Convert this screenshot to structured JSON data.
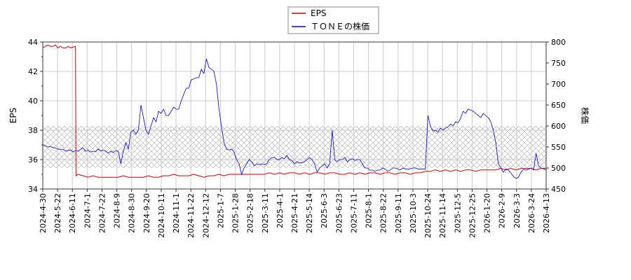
{
  "chart_data": {
    "type": "line",
    "legend": {
      "placement": "top-center",
      "entries": [
        {
          "name": "EPS",
          "color": "#cc0000"
        },
        {
          "name": "ＴＯＮＥの株価",
          "color": "#0000cc"
        }
      ]
    },
    "y_left": {
      "label": "EPS",
      "range": [
        34,
        44
      ],
      "ticks": [
        "34",
        "36",
        "38",
        "40",
        "42",
        "44"
      ]
    },
    "y_right": {
      "label": "株価",
      "range": [
        450,
        800
      ],
      "ticks": [
        "450",
        "500",
        "550",
        "600",
        "650",
        "700",
        "750",
        "800"
      ]
    },
    "x_ticks": [
      "2024-4-30",
      "2024-5-22",
      "2024-6-11",
      "2024-7-1",
      "2024-7-22",
      "2024-8-9",
      "2024-8-30",
      "2024-9-20",
      "2024-10-11",
      "2024-11-1",
      "2024-11-22",
      "2024-12-12",
      "2025-1-7",
      "2025-1-28",
      "2025-2-18",
      "2025-3-11",
      "2025-4-1",
      "2025-4-21",
      "2025-5-14",
      "2025-6-3",
      "2025-6-23",
      "2025-7-11",
      "2025-8-1",
      "2025-8-22",
      "2025-9-11",
      "2025-10-3",
      "2025-10-24",
      "2025-11-14",
      "2025-12-5",
      "2025-12-25",
      "2026-1-20",
      "2026-2-9",
      "2026-3-3",
      "2026-3-24",
      "2026-4-13"
    ],
    "hatch_band": {
      "axis": "right",
      "from": 500,
      "to": 600
    },
    "grid": true,
    "series": [
      {
        "name": "EPS",
        "axis": "left",
        "color": "#cc0000",
        "points": [
          [
            0,
            43.6
          ],
          [
            0.5,
            43.7
          ],
          [
            1,
            43.8
          ],
          [
            1.5,
            43.7
          ],
          [
            2,
            43.7
          ],
          [
            2.5,
            43.8
          ],
          [
            3,
            43.6
          ],
          [
            3.5,
            43.7
          ],
          [
            4,
            43.6
          ],
          [
            4.7,
            43.6
          ],
          [
            5,
            43.7
          ],
          [
            5.5,
            43.6
          ],
          [
            6.5,
            43.7
          ],
          [
            6.6,
            34.9
          ],
          [
            7,
            35.0
          ],
          [
            8,
            34.9
          ],
          [
            9,
            34.8
          ],
          [
            10,
            34.9
          ],
          [
            11,
            34.8
          ],
          [
            12,
            34.8
          ],
          [
            13,
            34.8
          ],
          [
            14,
            34.8
          ],
          [
            15,
            34.8
          ],
          [
            16,
            34.9
          ],
          [
            17,
            34.8
          ],
          [
            18,
            34.8
          ],
          [
            19,
            34.8
          ],
          [
            20,
            34.8
          ],
          [
            21,
            34.9
          ],
          [
            22,
            34.8
          ],
          [
            23,
            34.8
          ],
          [
            24,
            34.9
          ],
          [
            25,
            34.9
          ],
          [
            26,
            35.0
          ],
          [
            27,
            34.9
          ],
          [
            28,
            34.9
          ],
          [
            29,
            34.9
          ],
          [
            30,
            35.0
          ],
          [
            31,
            34.9
          ],
          [
            32,
            34.8
          ],
          [
            33,
            34.9
          ],
          [
            34,
            34.9
          ],
          [
            35,
            35.0
          ],
          [
            36,
            34.9
          ],
          [
            37,
            35.0
          ],
          [
            38,
            35.0
          ],
          [
            39,
            35.0
          ],
          [
            40,
            35.0
          ],
          [
            41,
            35.0
          ],
          [
            42,
            35.0
          ],
          [
            43,
            35.0
          ],
          [
            44,
            35.0
          ],
          [
            45,
            35.1
          ],
          [
            46,
            35.0
          ],
          [
            47,
            35.1
          ],
          [
            48,
            35.0
          ],
          [
            49,
            35.1
          ],
          [
            50,
            35.1
          ],
          [
            51,
            35.0
          ],
          [
            52,
            35.1
          ],
          [
            53,
            35.0
          ],
          [
            54,
            35.1
          ],
          [
            55,
            35.1
          ],
          [
            56,
            35.0
          ],
          [
            57,
            35.1
          ],
          [
            58,
            35.1
          ],
          [
            59,
            35.0
          ],
          [
            60,
            35.0
          ],
          [
            61,
            35.1
          ],
          [
            62,
            35.0
          ],
          [
            63,
            35.1
          ],
          [
            64,
            35.0
          ],
          [
            65,
            35.1
          ],
          [
            66,
            35.1
          ],
          [
            67,
            35.0
          ],
          [
            68,
            35.1
          ],
          [
            69,
            35.1
          ],
          [
            70,
            35.0
          ],
          [
            71,
            35.1
          ],
          [
            72,
            35.1
          ],
          [
            73,
            35.0
          ],
          [
            74,
            35.1
          ],
          [
            75,
            35.1
          ],
          [
            76,
            35.2
          ],
          [
            77,
            35.2
          ],
          [
            78,
            35.3
          ],
          [
            79,
            35.2
          ],
          [
            80,
            35.3
          ],
          [
            81,
            35.2
          ],
          [
            82,
            35.3
          ],
          [
            83,
            35.2
          ],
          [
            84,
            35.3
          ],
          [
            85,
            35.3
          ],
          [
            86,
            35.2
          ],
          [
            87,
            35.3
          ],
          [
            88,
            35.3
          ],
          [
            89,
            35.3
          ],
          [
            90,
            35.3
          ],
          [
            91,
            35.4
          ],
          [
            92,
            35.3
          ],
          [
            93,
            35.4
          ],
          [
            94,
            35.3
          ],
          [
            95,
            35.4
          ],
          [
            96,
            35.4
          ],
          [
            97,
            35.4
          ],
          [
            98,
            35.3
          ],
          [
            99,
            35.4
          ],
          [
            100,
            35.4
          ]
        ]
      },
      {
        "name": "ＴＯＮＥの株価",
        "axis": "right",
        "color": "#0000cc",
        "points": [
          [
            0,
            555
          ],
          [
            0.5,
            553
          ],
          [
            1,
            550
          ],
          [
            1.5,
            551
          ],
          [
            2,
            549
          ],
          [
            2.5,
            548
          ],
          [
            3,
            545
          ],
          [
            3.5,
            544
          ],
          [
            4,
            545
          ],
          [
            4.5,
            540
          ],
          [
            5,
            542
          ],
          [
            5.5,
            543
          ],
          [
            6,
            538
          ],
          [
            6.5,
            541
          ],
          [
            7,
            540
          ],
          [
            7.5,
            544
          ],
          [
            8,
            548
          ],
          [
            8.5,
            540
          ],
          [
            9,
            542
          ],
          [
            9.5,
            538
          ],
          [
            10,
            540
          ],
          [
            10.5,
            539
          ],
          [
            11,
            545
          ],
          [
            11.5,
            541
          ],
          [
            12,
            542
          ],
          [
            12.5,
            540
          ],
          [
            13,
            535
          ],
          [
            13.5,
            540
          ],
          [
            14,
            537
          ],
          [
            14.5,
            541
          ],
          [
            15,
            540
          ],
          [
            15.5,
            510
          ],
          [
            16,
            540
          ],
          [
            16.5,
            560
          ],
          [
            17,
            545
          ],
          [
            17.5,
            585
          ],
          [
            18,
            590
          ],
          [
            18.5,
            580
          ],
          [
            19,
            590
          ],
          [
            19.5,
            650
          ],
          [
            20,
            620
          ],
          [
            20.5,
            590
          ],
          [
            21,
            580
          ],
          [
            21.5,
            600
          ],
          [
            22,
            620
          ],
          [
            22.5,
            610
          ],
          [
            23,
            635
          ],
          [
            23.5,
            630
          ],
          [
            24,
            640
          ],
          [
            24.5,
            625
          ],
          [
            25,
            625
          ],
          [
            25.5,
            635
          ],
          [
            26,
            645
          ],
          [
            26.5,
            640
          ],
          [
            27,
            640
          ],
          [
            27.5,
            660
          ],
          [
            28,
            675
          ],
          [
            28.5,
            690
          ],
          [
            29,
            690
          ],
          [
            29.5,
            710
          ],
          [
            30,
            712
          ],
          [
            30.5,
            715
          ],
          [
            31,
            715
          ],
          [
            31.5,
            735
          ],
          [
            32,
            725
          ],
          [
            32.5,
            760
          ],
          [
            33,
            740
          ],
          [
            33.5,
            735
          ],
          [
            34,
            730
          ],
          [
            34.5,
            700
          ],
          [
            35,
            640
          ],
          [
            35.5,
            600
          ],
          [
            36,
            560
          ],
          [
            36.5,
            545
          ],
          [
            37,
            543
          ],
          [
            37.5,
            545
          ],
          [
            38,
            538
          ],
          [
            38.5,
            520
          ],
          [
            39,
            510
          ],
          [
            39.5,
            485
          ],
          [
            40,
            500
          ],
          [
            40.5,
            510
          ],
          [
            41,
            520
          ],
          [
            41.5,
            515
          ],
          [
            42,
            505
          ],
          [
            42.5,
            510
          ],
          [
            43,
            508
          ],
          [
            43.5,
            510
          ],
          [
            44,
            508
          ],
          [
            44.5,
            510
          ],
          [
            45,
            520
          ],
          [
            45.5,
            525
          ],
          [
            46,
            525
          ],
          [
            46.5,
            520
          ],
          [
            47,
            520
          ],
          [
            47.5,
            525
          ],
          [
            48,
            522
          ],
          [
            48.5,
            530
          ],
          [
            49,
            520
          ],
          [
            49.5,
            518
          ],
          [
            50,
            510
          ],
          [
            50.5,
            515
          ],
          [
            51,
            512
          ],
          [
            51.5,
            513
          ],
          [
            52,
            515
          ],
          [
            52.5,
            520
          ],
          [
            53,
            525
          ],
          [
            53.5,
            520
          ],
          [
            54,
            510
          ],
          [
            54.5,
            490
          ],
          [
            55,
            500
          ],
          [
            55.5,
            505
          ],
          [
            56,
            510
          ],
          [
            56.5,
            500
          ],
          [
            57,
            510
          ],
          [
            57.5,
            590
          ],
          [
            58,
            520
          ],
          [
            58.5,
            515
          ],
          [
            59,
            520
          ],
          [
            59.5,
            520
          ],
          [
            60,
            525
          ],
          [
            60.5,
            515
          ],
          [
            61,
            520
          ],
          [
            61.5,
            522
          ],
          [
            62,
            518
          ],
          [
            62.5,
            520
          ],
          [
            63,
            520
          ],
          [
            63.5,
            510
          ],
          [
            64,
            500
          ],
          [
            64.5,
            500
          ],
          [
            65,
            495
          ],
          [
            65.5,
            495
          ],
          [
            66,
            492
          ],
          [
            66.5,
            495
          ],
          [
            67,
            495
          ],
          [
            67.5,
            500
          ],
          [
            68,
            498
          ],
          [
            68.5,
            492
          ],
          [
            69,
            495
          ],
          [
            69.5,
            500
          ],
          [
            70,
            500
          ],
          [
            70.5,
            498
          ],
          [
            71,
            495
          ],
          [
            71.5,
            500
          ],
          [
            72,
            498
          ],
          [
            72.5,
            497
          ],
          [
            73,
            498
          ],
          [
            73.5,
            500
          ],
          [
            74,
            500
          ],
          [
            74.5,
            498
          ],
          [
            75,
            497
          ],
          [
            75.5,
            498
          ],
          [
            76,
            497
          ],
          [
            76.5,
            625
          ],
          [
            77,
            600
          ],
          [
            77.5,
            588
          ],
          [
            78,
            590
          ],
          [
            78.5,
            585
          ],
          [
            79,
            595
          ],
          [
            79.5,
            590
          ],
          [
            80,
            595
          ],
          [
            80.5,
            598
          ],
          [
            81,
            605
          ],
          [
            81.5,
            600
          ],
          [
            82,
            610
          ],
          [
            82.5,
            608
          ],
          [
            83,
            618
          ],
          [
            83.5,
            635
          ],
          [
            84,
            630
          ],
          [
            84.5,
            640
          ],
          [
            85,
            638
          ],
          [
            85.5,
            635
          ],
          [
            86,
            630
          ],
          [
            86.5,
            625
          ],
          [
            87,
            620
          ],
          [
            87.5,
            630
          ],
          [
            88,
            625
          ],
          [
            88.5,
            620
          ],
          [
            89,
            610
          ],
          [
            89.5,
            590
          ],
          [
            90,
            560
          ],
          [
            90.5,
            510
          ],
          [
            91,
            500
          ],
          [
            91.5,
            490
          ],
          [
            92,
            498
          ],
          [
            92.5,
            495
          ],
          [
            93,
            488
          ],
          [
            93.5,
            480
          ],
          [
            94,
            475
          ],
          [
            94.5,
            478
          ],
          [
            95,
            490
          ],
          [
            95.5,
            497
          ],
          [
            96,
            495
          ],
          [
            96.5,
            497
          ],
          [
            97,
            500
          ],
          [
            97.5,
            495
          ],
          [
            98,
            535
          ],
          [
            98.5,
            505
          ],
          [
            99,
            500
          ],
          [
            99.5,
            498
          ],
          [
            100,
            495
          ]
        ]
      }
    ]
  }
}
